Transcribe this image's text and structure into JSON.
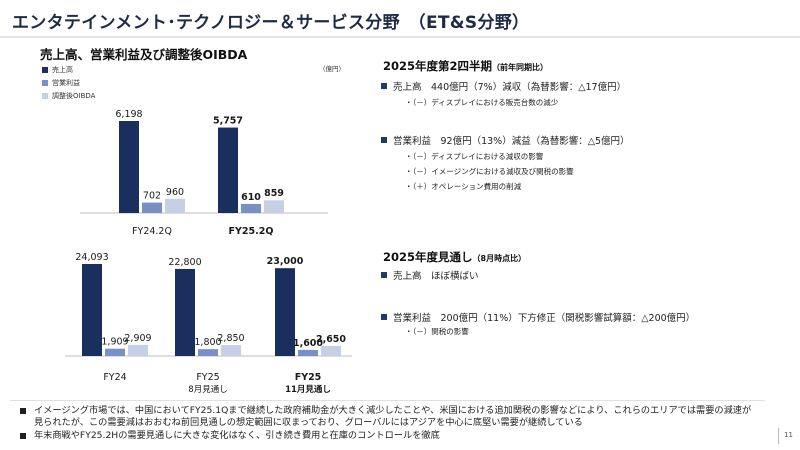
{
  "page": {
    "title": "エンタテインメント･テクノロジー＆サービス分野　（ET&S分野）",
    "page_number": "11"
  },
  "chart_heading": "売上高、営業利益及び調整後OIBDA",
  "unit": "（億円）",
  "legend": [
    {
      "label": "売上高",
      "color": "#1b2f5e"
    },
    {
      "label": "営業利益",
      "color": "#7b8fc7"
    },
    {
      "label": "調整後OIBDA",
      "color": "#c5cfe6"
    }
  ],
  "chart_data": [
    {
      "type": "bar",
      "series_names": [
        "売上高",
        "営業利益",
        "調整後OIBDA"
      ],
      "categories": [
        {
          "lines": [
            "FY24.2Q"
          ],
          "bold": false
        },
        {
          "lines": [
            "FY25.2Q"
          ],
          "bold": true
        }
      ],
      "values": [
        [
          6198,
          702,
          960
        ],
        [
          5757,
          610,
          859
        ]
      ],
      "labels": [
        [
          "6,198",
          "702",
          "960"
        ],
        [
          "5,757",
          "610",
          "859"
        ]
      ],
      "bold_labels": [
        false,
        true
      ]
    },
    {
      "type": "bar",
      "series_names": [
        "売上高",
        "営業利益",
        "調整後OIBDA"
      ],
      "categories": [
        {
          "lines": [
            "FY24"
          ],
          "bold": false
        },
        {
          "lines": [
            "FY25",
            "8月見通し"
          ],
          "bold": false
        },
        {
          "lines": [
            "FY25",
            "11月見通し"
          ],
          "bold": true
        }
      ],
      "values": [
        [
          24093,
          1909,
          2909
        ],
        [
          22800,
          1800,
          2850
        ],
        [
          23000,
          1600,
          2650
        ]
      ],
      "labels": [
        [
          "24,093",
          "1,909",
          "2,909"
        ],
        [
          "22,800",
          "1,800",
          "2,850"
        ],
        [
          "23,000",
          "1,600",
          "2,650"
        ]
      ],
      "bold_labels": [
        false,
        false,
        true
      ]
    }
  ],
  "q2": {
    "title": "2025年度第2四半期",
    "subtitle": "（前年同期比）",
    "sales": "売上高　440億円（7%）減収（為替影響：△17億円）",
    "sales_notes": [
      "・（－）ディスプレイにおける販売台数の減少"
    ],
    "op": "営業利益　92億円（13%）減益（為替影響：△5億円）",
    "op_notes": [
      "・（－）ディスプレイにおける減収の影響",
      "・（－）イメージングにおける減収及び関税の影響",
      "・（＋）オペレーション費用の削減"
    ]
  },
  "forecast": {
    "title": "2025年度見通し",
    "subtitle": "（8月時点比）",
    "sales": "売上高　ほぼ横ばい",
    "op": "営業利益　200億円（11%）下方修正（関税影響試算額：△200億円）",
    "op_notes": [
      "・（－）関税の影響"
    ]
  },
  "notes": [
    "イメージング市場では、中国においてFY25.1Qまで継続した政府補助金が大きく減少したことや、米国における追加関税の影響などにより、これらのエリアでは需要の減速が見られたが、この需要減はおおむね前回見通しの想定範囲に収まっており、グローバルにはアジアを中心に底堅い需要が継続している",
    "年末商戦やFY25.2Hの需要見通しに大きな変化はなく、引き続き費用と在庫のコントロールを徹底"
  ]
}
